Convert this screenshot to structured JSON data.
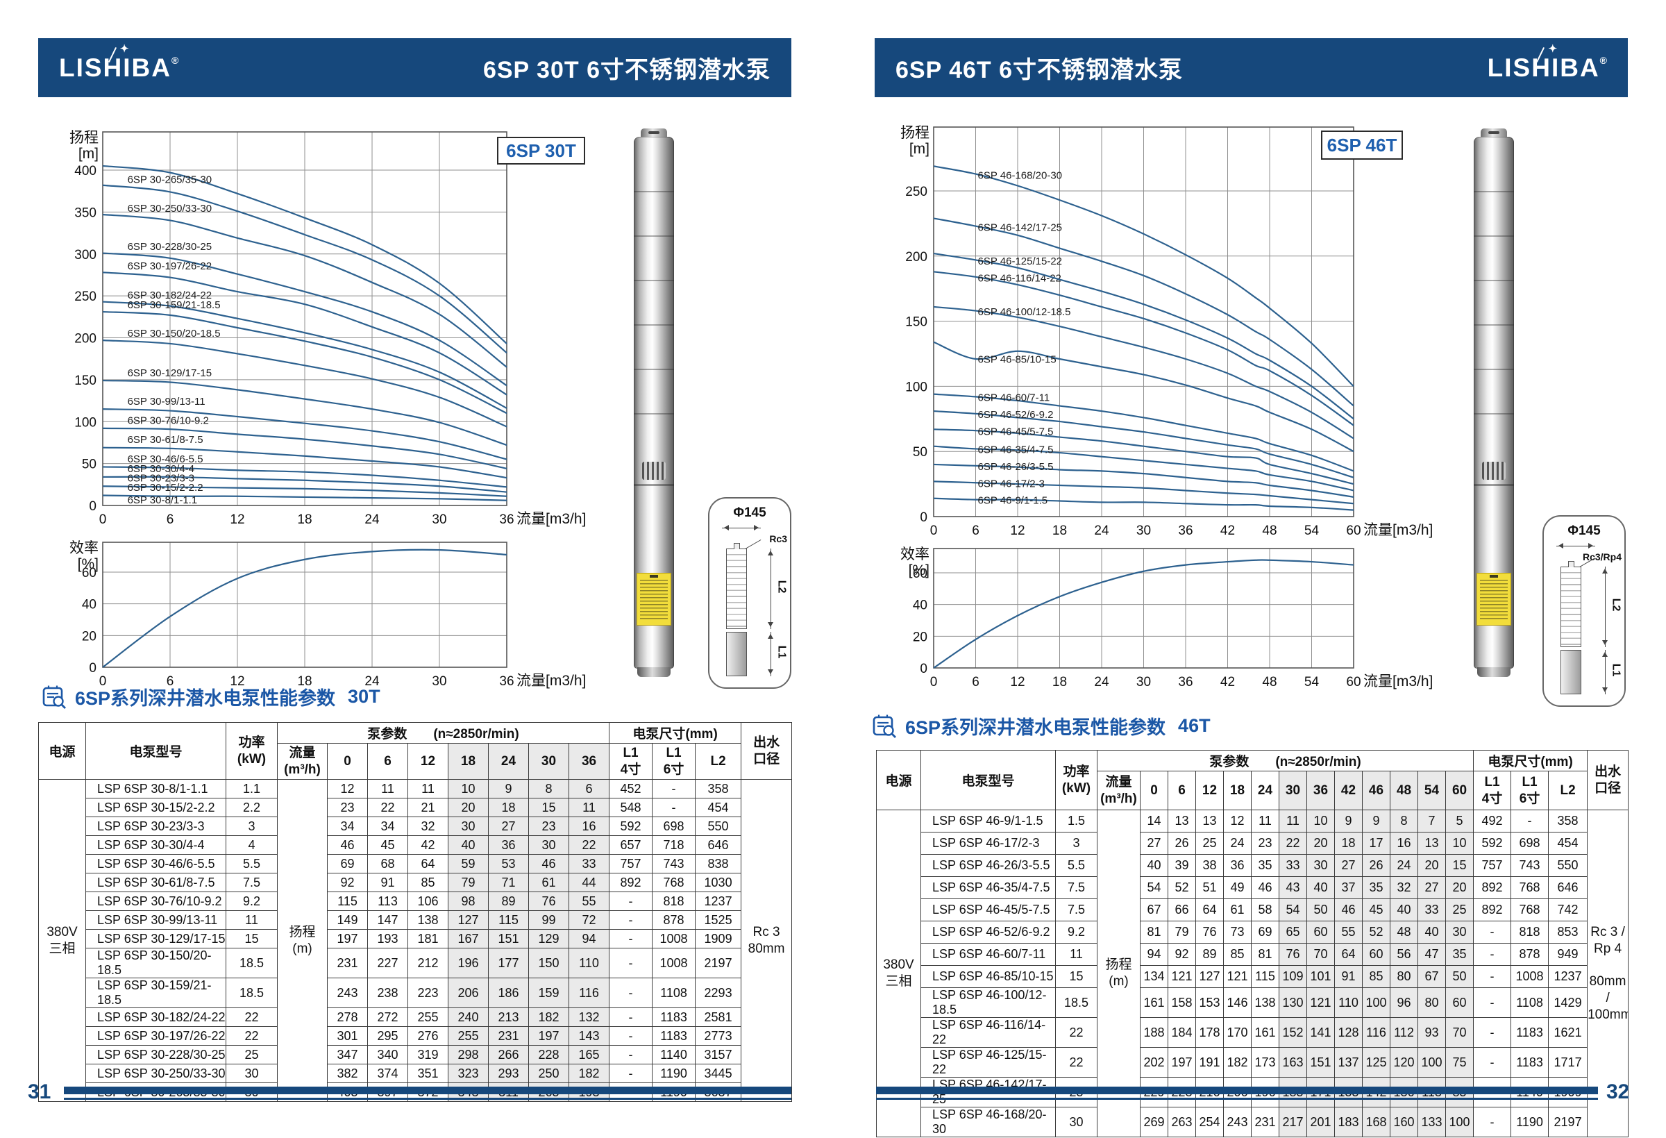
{
  "pages": [
    {
      "page_number": "31",
      "header": {
        "logo": "LISHIBA",
        "trademark": "®",
        "logo_star": "✦",
        "title": "6SP 30T 6寸不锈钢潜水泵"
      },
      "chart_badge": "6SP 30T",
      "section_title": "6SP系列深井潜水电泵性能参数",
      "section_tag": "30T",
      "diagram": {
        "diameter": "Φ145",
        "outlet_thread": "Rc3",
        "dim_l1": "L1",
        "dim_l2": "L2"
      },
      "table": {
        "headers": {
          "power_source": "电源",
          "model": "电泵型号",
          "power": "功率\n(kW)",
          "pump_params": "泵参数　　(n≈2850r/min)",
          "flow": "流量\n(m³/h)",
          "dimensions": "电泵尺寸(mm)",
          "l1_4": "L1\n4寸",
          "l1_6": "L1\n6寸",
          "l2": "L2",
          "outlet": "出水\n口径"
        },
        "voltage": "380V\n三相",
        "head_unit": "扬程\n(m)",
        "model_prefix": "LSP ",
        "flow_cols": [
          "0",
          "6",
          "12",
          "18",
          "24",
          "30",
          "36"
        ],
        "rows": [
          {
            "kw": "1.1",
            "l1_4": "452",
            "l1_6": "-",
            "l2": "358"
          },
          {
            "kw": "2.2",
            "l1_4": "548",
            "l1_6": "-",
            "l2": "454"
          },
          {
            "kw": "3",
            "l1_4": "592",
            "l1_6": "698",
            "l2": "550"
          },
          {
            "kw": "4",
            "l1_4": "657",
            "l1_6": "718",
            "l2": "646"
          },
          {
            "kw": "5.5",
            "l1_4": "757",
            "l1_6": "743",
            "l2": "838"
          },
          {
            "kw": "7.5",
            "l1_4": "892",
            "l1_6": "768",
            "l2": "1030"
          },
          {
            "kw": "9.2",
            "l1_4": "-",
            "l1_6": "818",
            "l2": "1237"
          },
          {
            "kw": "11",
            "l1_4": "-",
            "l1_6": "878",
            "l2": "1525"
          },
          {
            "kw": "15",
            "l1_4": "-",
            "l1_6": "1008",
            "l2": "1909"
          },
          {
            "kw": "18.5",
            "l1_4": "-",
            "l1_6": "1008",
            "l2": "2197"
          },
          {
            "kw": "18.5",
            "l1_4": "-",
            "l1_6": "1108",
            "l2": "2293"
          },
          {
            "kw": "22",
            "l1_4": "-",
            "l1_6": "1183",
            "l2": "2581"
          },
          {
            "kw": "22",
            "l1_4": "-",
            "l1_6": "1183",
            "l2": "2773"
          },
          {
            "kw": "25",
            "l1_4": "-",
            "l1_6": "1140",
            "l2": "3157"
          },
          {
            "kw": "30",
            "l1_4": "-",
            "l1_6": "1190",
            "l2": "3445"
          },
          {
            "kw": "30",
            "l1_4": "-",
            "l1_6": "1190",
            "l2": "3637"
          }
        ],
        "outlet_value": "Rc 3\n80mm"
      }
    },
    {
      "page_number": "32",
      "header": {
        "logo": "LISHIBA",
        "trademark": "®",
        "logo_star": "✦",
        "title": "6SP 46T 6寸不锈钢潜水泵"
      },
      "chart_badge": "6SP 46T",
      "section_title": "6SP系列深井潜水电泵性能参数",
      "section_tag": "46T",
      "diagram": {
        "diameter": "Φ145",
        "outlet_thread": "Rc3/Rp4",
        "dim_l1": "L1",
        "dim_l2": "L2"
      },
      "table": {
        "headers": {
          "power_source": "电源",
          "model": "电泵型号",
          "power": "功率\n(kW)",
          "pump_params": "泵参数　　(n≈2850r/min)",
          "flow": "流量\n(m³/h)",
          "dimensions": "电泵尺寸(mm)",
          "l1_4": "L1\n4寸",
          "l1_6": "L1\n6寸",
          "l2": "L2",
          "outlet": "出水\n口径"
        },
        "voltage": "380V\n三相",
        "head_unit": "扬程\n(m)",
        "model_prefix": "LSP ",
        "flow_cols": [
          "0",
          "6",
          "12",
          "18",
          "24",
          "30",
          "36",
          "42",
          "46",
          "48",
          "54",
          "60"
        ],
        "rows": [
          {
            "kw": "1.5",
            "l1_4": "492",
            "l1_6": "-",
            "l2": "358"
          },
          {
            "kw": "3",
            "l1_4": "592",
            "l1_6": "698",
            "l2": "454"
          },
          {
            "kw": "5.5",
            "l1_4": "757",
            "l1_6": "743",
            "l2": "550"
          },
          {
            "kw": "7.5",
            "l1_4": "892",
            "l1_6": "768",
            "l2": "646"
          },
          {
            "kw": "7.5",
            "l1_4": "892",
            "l1_6": "768",
            "l2": "742"
          },
          {
            "kw": "9.2",
            "l1_4": "-",
            "l1_6": "818",
            "l2": "853"
          },
          {
            "kw": "11",
            "l1_4": "-",
            "l1_6": "878",
            "l2": "949"
          },
          {
            "kw": "15",
            "l1_4": "-",
            "l1_6": "1008",
            "l2": "1237"
          },
          {
            "kw": "18.5",
            "l1_4": "-",
            "l1_6": "1108",
            "l2": "1429"
          },
          {
            "kw": "22",
            "l1_4": "-",
            "l1_6": "1183",
            "l2": "1621"
          },
          {
            "kw": "22",
            "l1_4": "-",
            "l1_6": "1183",
            "l2": "1717"
          },
          {
            "kw": "25",
            "l1_4": "-",
            "l1_6": "1140",
            "l2": "1909"
          },
          {
            "kw": "30",
            "l1_4": "-",
            "l1_6": "1190",
            "l2": "2197"
          }
        ],
        "outlet_value": "Rc 3 /\nRp 4\n\n80mm /\n100mm"
      }
    }
  ],
  "chart_data": [
    {
      "id": "head-30t",
      "type": "line",
      "title": "6SP 30T",
      "ylabel": "扬程\n[m]",
      "xlabel": "流量[m3/h]",
      "x": [
        0,
        6,
        12,
        18,
        24,
        30,
        36
      ],
      "xticks": [
        0,
        6,
        12,
        18,
        24,
        30,
        36
      ],
      "xlim": [
        0,
        36
      ],
      "yticks": [
        0,
        50,
        100,
        150,
        200,
        250,
        300,
        350,
        400
      ],
      "ylim": [
        0,
        445
      ],
      "grid": true,
      "legend_position": "inline-labels",
      "line_color": "#2d618f",
      "series": [
        {
          "name": "6SP 30-8/1-1.1",
          "values": [
            12,
            11,
            11,
            10,
            9,
            8,
            6
          ]
        },
        {
          "name": "6SP 30-15/2-2.2",
          "values": [
            23,
            22,
            21,
            20,
            18,
            15,
            11
          ]
        },
        {
          "name": "6SP 30-23/3-3",
          "values": [
            34,
            34,
            32,
            30,
            27,
            23,
            16
          ]
        },
        {
          "name": "6SP 30-30/4-4",
          "values": [
            46,
            45,
            42,
            40,
            36,
            30,
            22
          ]
        },
        {
          "name": "6SP 30-46/6-5.5",
          "values": [
            69,
            68,
            64,
            59,
            53,
            46,
            33
          ]
        },
        {
          "name": "6SP 30-61/8-7.5",
          "values": [
            92,
            91,
            85,
            79,
            71,
            61,
            44
          ]
        },
        {
          "name": "6SP 30-76/10-9.2",
          "values": [
            115,
            113,
            106,
            98,
            89,
            76,
            55
          ]
        },
        {
          "name": "6SP 30-99/13-11",
          "values": [
            149,
            147,
            138,
            127,
            115,
            99,
            72
          ]
        },
        {
          "name": "6SP 30-129/17-15",
          "values": [
            197,
            193,
            181,
            167,
            151,
            129,
            94
          ]
        },
        {
          "name": "6SP 30-150/20-18.5",
          "values": [
            231,
            227,
            212,
            196,
            177,
            150,
            110
          ]
        },
        {
          "name": "6SP 30-159/21-18.5",
          "values": [
            243,
            238,
            223,
            206,
            186,
            159,
            116
          ]
        },
        {
          "name": "6SP 30-182/24-22",
          "values": [
            278,
            272,
            255,
            240,
            213,
            182,
            132
          ]
        },
        {
          "name": "6SP 30-197/26-22",
          "values": [
            301,
            295,
            276,
            255,
            231,
            197,
            143
          ]
        },
        {
          "name": "6SP 30-228/30-25",
          "values": [
            347,
            340,
            319,
            298,
            266,
            228,
            165
          ]
        },
        {
          "name": "6SP 30-250/33-30",
          "values": [
            382,
            374,
            351,
            323,
            293,
            250,
            182
          ]
        },
        {
          "name": "6SP 30-265/35-30",
          "values": [
            405,
            397,
            372,
            343,
            311,
            265,
            193
          ]
        }
      ]
    },
    {
      "id": "eff-30t",
      "type": "line",
      "ylabel": "效率\n[%]",
      "xlabel": "流量[m3/h]",
      "x": [
        0,
        6,
        12,
        18,
        24,
        30,
        36
      ],
      "xticks": [
        0,
        6,
        12,
        18,
        24,
        30,
        36
      ],
      "xlim": [
        0,
        36
      ],
      "yticks": [
        0,
        20,
        40,
        60
      ],
      "ylim": [
        0,
        79
      ],
      "grid": true,
      "line_color": "#2d618f",
      "series": [
        {
          "name": "效率",
          "values": [
            0,
            32,
            56,
            68,
            73,
            74,
            71
          ]
        }
      ]
    },
    {
      "id": "head-46t",
      "type": "line",
      "title": "6SP 46T",
      "ylabel": "扬程\n[m]",
      "xlabel": "流量[m3/h]",
      "x": [
        0,
        6,
        12,
        18,
        24,
        30,
        36,
        42,
        46,
        48,
        54,
        60
      ],
      "xticks": [
        0,
        6,
        12,
        18,
        24,
        30,
        36,
        42,
        48,
        54,
        60
      ],
      "xlim": [
        0,
        60
      ],
      "yticks": [
        0,
        50,
        100,
        150,
        200,
        250
      ],
      "ylim": [
        0,
        299
      ],
      "grid": true,
      "legend_position": "inline-labels",
      "line_color": "#2d618f",
      "series": [
        {
          "name": "6SP 46-9/1-1.5",
          "values": [
            14,
            13,
            13,
            12,
            11,
            11,
            10,
            9,
            9,
            8,
            7,
            5
          ]
        },
        {
          "name": "6SP 46-17/2-3",
          "values": [
            27,
            26,
            25,
            24,
            23,
            22,
            20,
            18,
            17,
            16,
            13,
            10
          ]
        },
        {
          "name": "6SP 46-26/3-5.5",
          "values": [
            40,
            39,
            38,
            36,
            35,
            33,
            30,
            27,
            26,
            24,
            20,
            15
          ]
        },
        {
          "name": "6SP 46-35/4-7.5",
          "values": [
            54,
            52,
            51,
            49,
            46,
            43,
            40,
            37,
            35,
            32,
            27,
            20
          ]
        },
        {
          "name": "6SP 46-45/5-7.5",
          "values": [
            67,
            66,
            64,
            61,
            58,
            54,
            50,
            46,
            45,
            40,
            33,
            25
          ]
        },
        {
          "name": "6SP 46-52/6-9.2",
          "values": [
            81,
            79,
            76,
            73,
            69,
            65,
            60,
            55,
            52,
            48,
            40,
            30
          ]
        },
        {
          "name": "6SP 46-60/7-11",
          "values": [
            94,
            92,
            89,
            85,
            81,
            76,
            70,
            64,
            60,
            56,
            47,
            35
          ]
        },
        {
          "name": "6SP 46-85/10-15",
          "values": [
            134,
            121,
            127,
            121,
            115,
            109,
            101,
            91,
            85,
            80,
            67,
            50
          ]
        },
        {
          "name": "6SP 46-100/12-18.5",
          "values": [
            161,
            158,
            153,
            146,
            138,
            130,
            121,
            110,
            100,
            96,
            80,
            60
          ]
        },
        {
          "name": "6SP 46-116/14-22",
          "values": [
            188,
            184,
            178,
            170,
            161,
            152,
            141,
            128,
            116,
            112,
            93,
            70
          ]
        },
        {
          "name": "6SP 46-125/15-22",
          "values": [
            202,
            197,
            191,
            182,
            173,
            163,
            151,
            137,
            125,
            120,
            100,
            75
          ]
        },
        {
          "name": "6SP 46-142/17-25",
          "values": [
            229,
            223,
            216,
            206,
            196,
            185,
            171,
            155,
            142,
            136,
            113,
            85
          ]
        },
        {
          "name": "6SP 46-168/20-30",
          "values": [
            269,
            263,
            254,
            243,
            231,
            217,
            201,
            183,
            168,
            160,
            133,
            100
          ]
        }
      ]
    },
    {
      "id": "eff-46t",
      "type": "line",
      "ylabel": "效率\n[%]",
      "xlabel": "流量[m3/h]",
      "x": [
        0,
        6,
        12,
        18,
        24,
        30,
        36,
        42,
        46,
        48,
        54,
        60
      ],
      "xticks": [
        0,
        6,
        12,
        18,
        24,
        30,
        36,
        42,
        48,
        54,
        60
      ],
      "xlim": [
        0,
        60
      ],
      "yticks": [
        0,
        20,
        40,
        60
      ],
      "ylim": [
        0,
        75
      ],
      "grid": true,
      "line_color": "#2d618f",
      "series": [
        {
          "name": "效率",
          "values": [
            0,
            18,
            33,
            45,
            54,
            61,
            65,
            67,
            68,
            68,
            67,
            65
          ]
        }
      ]
    }
  ]
}
